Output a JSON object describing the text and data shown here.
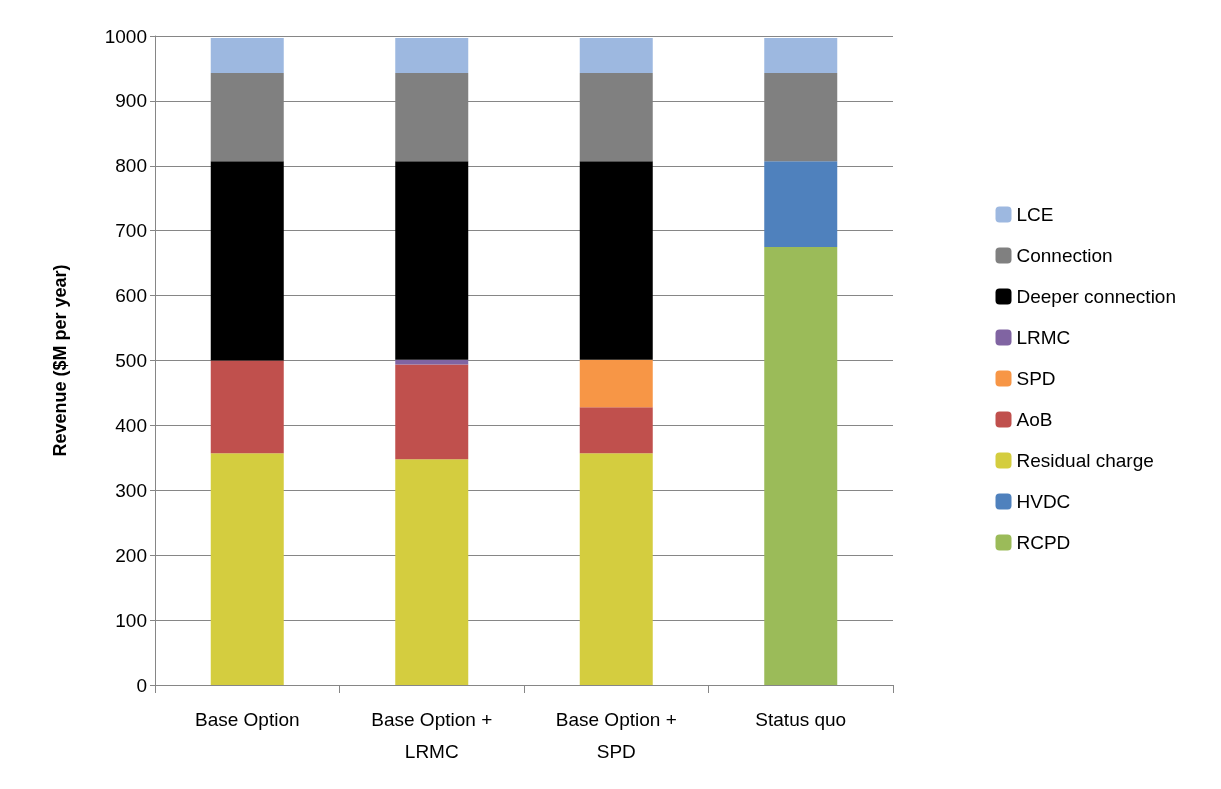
{
  "chart_data": {
    "type": "bar",
    "stacked": true,
    "ylabel": "Revenue ($M per year)",
    "categories": [
      "Base Option",
      "Base Option +\nLRMC",
      "Base Option +\nSPD",
      "Status quo"
    ],
    "series": [
      {
        "name": "RCPD",
        "color": "#9bbb59",
        "values": [
          null,
          null,
          null,
          675
        ]
      },
      {
        "name": "HVDC",
        "color": "#4f81bd",
        "values": [
          null,
          null,
          null,
          132
        ]
      },
      {
        "name": "Residual charge",
        "color": "#d4cd3f",
        "values": [
          357,
          348,
          357,
          null
        ]
      },
      {
        "name": "AoB",
        "color": "#c0504d",
        "values": [
          143,
          146,
          71,
          null
        ]
      },
      {
        "name": "SPD",
        "color": "#f79646",
        "values": [
          null,
          null,
          73,
          null
        ]
      },
      {
        "name": "LRMC",
        "color": "#8064a2",
        "values": [
          null,
          7,
          null,
          null
        ]
      },
      {
        "name": "Deeper connection",
        "color": "#000000",
        "values": [
          307,
          306,
          306,
          null
        ]
      },
      {
        "name": "Connection",
        "color": "#808080",
        "values": [
          136,
          136,
          136,
          136
        ]
      },
      {
        "name": "LCE",
        "color": "#9db8e0",
        "values": [
          54,
          54,
          54,
          54
        ]
      }
    ],
    "ylim": [
      0,
      1000
    ],
    "yticks": [
      0,
      100,
      200,
      300,
      400,
      500,
      600,
      700,
      800,
      900,
      1000
    ],
    "grid": "y",
    "legend": "right"
  }
}
